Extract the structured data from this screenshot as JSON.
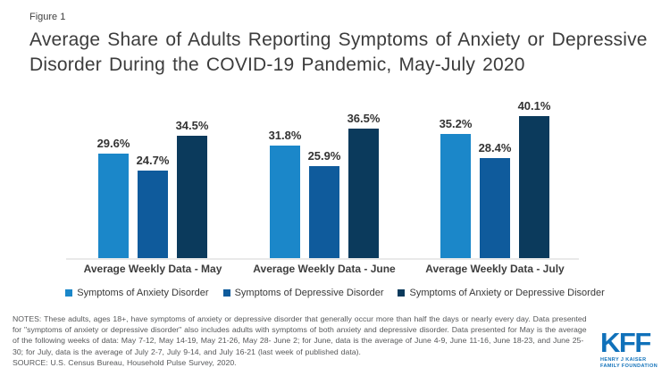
{
  "figure_label": "Figure 1",
  "title": "Average Share of Adults Reporting Symptoms of Anxiety or Depressive Disorder During the COVID-19 Pandemic, May-July 2020",
  "chart_data": {
    "type": "bar",
    "categories": [
      "Average Weekly Data - May",
      "Average Weekly Data - June",
      "Average Weekly Data - July"
    ],
    "series": [
      {
        "name": "Symptoms of Anxiety Disorder",
        "color": "#1b87c9",
        "values": [
          29.6,
          31.8,
          35.2
        ]
      },
      {
        "name": "Symptoms of Depressive Disorder",
        "color": "#0f5b9c",
        "values": [
          24.7,
          25.9,
          28.4
        ]
      },
      {
        "name": "Symptoms of Anxiety or Depressive Disorder",
        "color": "#0b3a5c",
        "values": [
          34.5,
          36.5,
          40.1
        ]
      }
    ],
    "value_suffix": "%",
    "ylim": [
      0,
      45
    ],
    "grid": false,
    "legend_position": "bottom",
    "value_labels": true
  },
  "notes": "NOTES: These adults, ages 18+, have symptoms of anxiety or depressive disorder that generally occur more than half the days or nearly every day. Data presented for \"symptoms of anxiety or depressive disorder\" also includes adults with symptoms of both anxiety and depressive disorder. Data presented for May is the average of the following weeks of data: May 7-12, May 14-19, May 21-26, May 28- June 2; for June, data is the average of June 4-9, June 11-16, June 18-23, and June 25-30; for July, data is the average of July 2-7, July 9-14, and July 16-21 (last week of published data).",
  "source": "SOURCE: U.S. Census Bureau, Household Pulse Survey, 2020.",
  "logo": {
    "text": "KFF",
    "line1": "HENRY J KAISER",
    "line2": "FAMILY FOUNDATION",
    "color": "#1071ba"
  }
}
